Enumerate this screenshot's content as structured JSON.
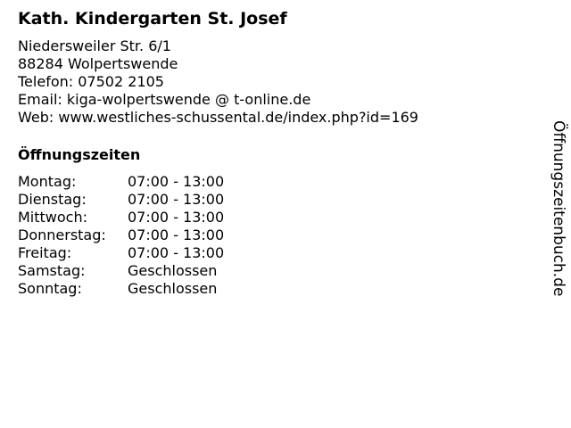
{
  "title": "Kath. Kindergarten St. Josef",
  "address": {
    "street": "Niedersweiler Str. 6/1",
    "city": "88284 Wolpertswende",
    "phone": "Telefon: 07502 2105",
    "email": "Email: kiga-wolpertswende @ t-online.de",
    "web": "Web: www.westliches-schussental.de/index.php?id=169"
  },
  "hours_heading": "Öffnungszeiten",
  "hours": [
    {
      "day": "Montag:",
      "time": "07:00 - 13:00"
    },
    {
      "day": "Dienstag:",
      "time": "07:00 - 13:00"
    },
    {
      "day": "Mittwoch:",
      "time": "07:00 - 13:00"
    },
    {
      "day": "Donnerstag:",
      "time": "07:00 - 13:00"
    },
    {
      "day": "Freitag:",
      "time": "07:00 - 13:00"
    },
    {
      "day": "Samstag:",
      "time": "Geschlossen"
    },
    {
      "day": "Sonntag:",
      "time": "Geschlossen"
    }
  ],
  "watermark": "Öffnungszeitenbuch.de"
}
